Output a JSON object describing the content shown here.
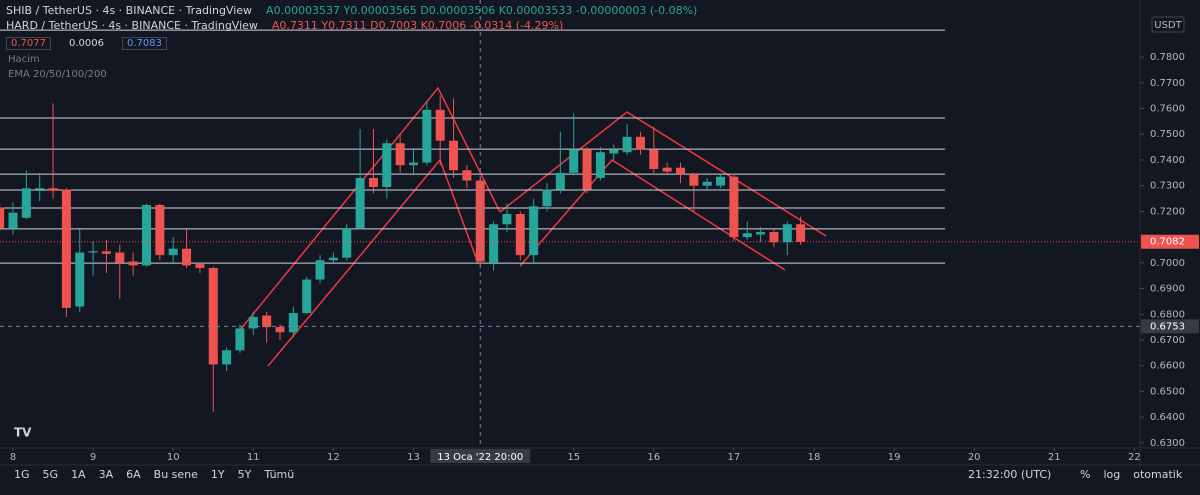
{
  "header": {
    "rows": [
      {
        "symbol": "SHIB / TetherUS · 4s · BINANCE · TradingView",
        "ohlc": "A0.00003537 Y0.00003565 D0.00003506 K0.00003533 -0.00000003 (-0.08%)"
      },
      {
        "symbol": "HARD / TetherUS · 4s · BINANCE · TradingView",
        "ohlc": "A0.7311 Y0.7311 D0.7003 K0.7006 -0.0314 (-4.29%)"
      }
    ],
    "price_boxes": [
      "0.7077",
      "0.0006",
      "0.7083"
    ],
    "indicators": [
      "Hacim",
      "EMA 20/50/100/200"
    ]
  },
  "axis_unit": "USDT",
  "toolbar": {
    "ranges": [
      "1G",
      "5G",
      "1A",
      "3A",
      "6A",
      "Bu sene",
      "1Y",
      "5Y",
      "Tümü"
    ],
    "time": "21:32:00 (UTC)",
    "options": [
      "%",
      "log",
      "otomatik"
    ]
  },
  "chart_data": {
    "type": "candlestick",
    "up_color": "#26a69a",
    "down_color": "#ef5350",
    "x": [
      7.8333,
      8,
      8.1667,
      8.3333,
      8.5,
      8.6667,
      8.8333,
      9,
      9.1667,
      9.3333,
      9.5,
      9.6667,
      9.8333,
      10,
      10.1667,
      10.3333,
      10.5,
      10.6667,
      10.8333,
      11,
      11.1667,
      11.3333,
      11.5,
      11.6667,
      11.8333,
      12,
      12.1667,
      12.3333,
      12.5,
      12.6667,
      12.8333,
      13,
      13.1667,
      13.3333,
      13.5,
      13.6667,
      13.8333,
      14,
      14.1667,
      14.3333,
      14.5,
      14.6667,
      14.8333,
      15,
      15.1667,
      15.3333,
      15.5,
      15.6667,
      15.8333,
      16,
      16.1667,
      16.3333,
      16.5,
      16.6667,
      16.8333,
      17,
      17.1667,
      17.3333,
      17.5,
      17.6667,
      17.8333
    ],
    "open": [
      0.7215,
      0.7135,
      0.7175,
      0.7285,
      0.729,
      0.7285,
      0.683,
      0.704,
      0.7045,
      0.704,
      0.7005,
      0.699,
      0.7225,
      0.703,
      0.7055,
      0.6995,
      0.698,
      0.6605,
      0.666,
      0.6745,
      0.6795,
      0.675,
      0.673,
      0.6805,
      0.6935,
      0.701,
      0.702,
      0.7135,
      0.733,
      0.7295,
      0.7465,
      0.738,
      0.739,
      0.7595,
      0.7475,
      0.736,
      0.732,
      0.7,
      0.715,
      0.719,
      0.703,
      0.722,
      0.7285,
      0.735,
      0.744,
      0.733,
      0.7425,
      0.743,
      0.749,
      0.744,
      0.737,
      0.737,
      0.7345,
      0.73,
      0.73,
      0.7335,
      0.71,
      0.711,
      0.712,
      0.708,
      0.715
    ],
    "high": [
      0.723,
      0.7235,
      0.736,
      0.735,
      0.762,
      0.729,
      0.713,
      0.7085,
      0.709,
      0.707,
      0.704,
      0.723,
      0.723,
      0.71,
      0.713,
      0.7,
      0.6985,
      0.667,
      0.676,
      0.681,
      0.681,
      0.676,
      0.683,
      0.6945,
      0.703,
      0.704,
      0.715,
      0.752,
      0.752,
      0.748,
      0.75,
      0.744,
      0.763,
      0.765,
      0.764,
      0.738,
      0.733,
      0.716,
      0.723,
      0.72,
      0.725,
      0.731,
      0.751,
      0.758,
      0.745,
      0.745,
      0.746,
      0.754,
      0.751,
      0.753,
      0.739,
      0.739,
      0.735,
      0.733,
      0.7345,
      0.7345,
      0.716,
      0.714,
      0.713,
      0.716,
      0.718
    ],
    "low": [
      0.712,
      0.711,
      0.717,
      0.724,
      0.725,
      0.679,
      0.681,
      0.695,
      0.696,
      0.686,
      0.695,
      0.6985,
      0.701,
      0.7,
      0.698,
      0.696,
      0.642,
      0.658,
      0.665,
      0.672,
      0.669,
      0.67,
      0.671,
      0.68,
      0.692,
      0.7,
      0.701,
      0.713,
      0.727,
      0.725,
      0.735,
      0.734,
      0.738,
      0.738,
      0.733,
      0.729,
      0.6985,
      0.697,
      0.712,
      0.701,
      0.7,
      0.72,
      0.727,
      0.734,
      0.727,
      0.732,
      0.74,
      0.742,
      0.742,
      0.735,
      0.734,
      0.731,
      0.72,
      0.728,
      0.729,
      0.7085,
      0.709,
      0.708,
      0.706,
      0.703,
      0.707
    ],
    "close": [
      0.7135,
      0.7195,
      0.729,
      0.729,
      0.728,
      0.6825,
      0.704,
      0.7045,
      0.7035,
      0.7,
      0.699,
      0.7225,
      0.703,
      0.7055,
      0.699,
      0.698,
      0.6605,
      0.666,
      0.6745,
      0.679,
      0.675,
      0.673,
      0.6805,
      0.6935,
      0.701,
      0.702,
      0.7135,
      0.733,
      0.7295,
      0.7465,
      0.738,
      0.739,
      0.7595,
      0.7475,
      0.736,
      0.732,
      0.7005,
      0.715,
      0.719,
      0.703,
      0.722,
      0.7285,
      0.735,
      0.744,
      0.7285,
      0.743,
      0.744,
      0.749,
      0.744,
      0.7365,
      0.7355,
      0.7345,
      0.73,
      0.7315,
      0.7335,
      0.71,
      0.7115,
      0.712,
      0.708,
      0.715,
      0.7082
    ],
    "xlim": [
      7.8377,
      22.07
    ],
    "ylim": [
      0.628,
      0.8022
    ],
    "xticks": [
      8,
      9,
      10,
      11,
      12,
      13,
      15,
      16,
      17,
      18,
      19,
      20,
      21,
      22
    ],
    "yticks": [
      {
        "value": 0.63,
        "label": "0.6300"
      },
      {
        "value": 0.64,
        "label": "0.6400"
      },
      {
        "value": 0.65,
        "label": "0.6500"
      },
      {
        "value": 0.66,
        "label": "0.6600"
      },
      {
        "value": 0.67,
        "label": "0.6700"
      },
      {
        "value": 0.68,
        "label": "0.6800"
      },
      {
        "value": 0.69,
        "label": "0.6900"
      },
      {
        "value": 0.7,
        "label": "0.7000"
      },
      {
        "value": 0.72,
        "label": "0.7200"
      },
      {
        "value": 0.73,
        "label": "0.7300"
      },
      {
        "value": 0.74,
        "label": "0.7400"
      },
      {
        "value": 0.75,
        "label": "0.7500"
      },
      {
        "value": 0.76,
        "label": "0.7600"
      },
      {
        "value": 0.77,
        "label": "0.7700"
      },
      {
        "value": 0.78,
        "label": "0.7800"
      }
    ],
    "grid": false,
    "levels": [
      0.7905,
      0.7563,
      0.7442,
      0.7345,
      0.7283,
      0.7213,
      0.7132,
      0.6999
    ],
    "last_price": 0.7082,
    "crosshair": {
      "x": {
        "value": 13.8333,
        "label": "13 Oca '22  20:00"
      },
      "y": 0.6753
    }
  }
}
